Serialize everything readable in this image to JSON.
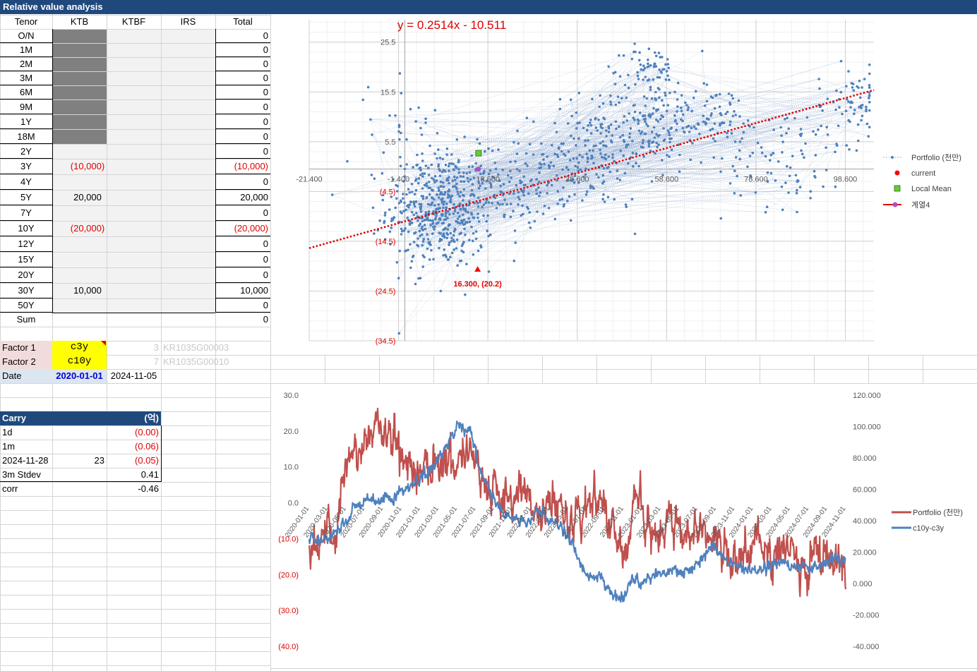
{
  "sheet_title": "Relative value analysis",
  "position_table": {
    "headers": [
      "Tenor",
      "KTB",
      "KTBF",
      "IRS",
      "Total"
    ],
    "rows": [
      {
        "tenor": "O/N",
        "ktb": "",
        "total": "0"
      },
      {
        "tenor": "1M",
        "ktb": "",
        "total": "0"
      },
      {
        "tenor": "2M",
        "ktb": "",
        "total": "0"
      },
      {
        "tenor": "3M",
        "ktb": "",
        "total": "0"
      },
      {
        "tenor": "6M",
        "ktb": "",
        "total": "0"
      },
      {
        "tenor": "9M",
        "ktb": "",
        "total": "0"
      },
      {
        "tenor": "1Y",
        "ktb": "",
        "total": "0"
      },
      {
        "tenor": "18M",
        "ktb": "",
        "total": "0"
      },
      {
        "tenor": "2Y",
        "ktb": "",
        "total": "0"
      },
      {
        "tenor": "3Y",
        "ktb": "(10,000)",
        "total": "(10,000)"
      },
      {
        "tenor": "4Y",
        "ktb": "",
        "total": "0"
      },
      {
        "tenor": "5Y",
        "ktb": "20,000",
        "total": "20,000"
      },
      {
        "tenor": "7Y",
        "ktb": "",
        "total": "0"
      },
      {
        "tenor": "10Y",
        "ktb": "(20,000)",
        "total": "(20,000)"
      },
      {
        "tenor": "12Y",
        "ktb": "",
        "total": "0"
      },
      {
        "tenor": "15Y",
        "ktb": "",
        "total": "0"
      },
      {
        "tenor": "20Y",
        "ktb": "",
        "total": "0"
      },
      {
        "tenor": "30Y",
        "ktb": "10,000",
        "total": "10,000"
      },
      {
        "tenor": "50Y",
        "ktb": "",
        "total": "0"
      }
    ],
    "sum_label": "Sum",
    "sum_value": "0"
  },
  "factors": {
    "factor1_label": "Factor 1",
    "factor1_value": "c3y",
    "factor1_index": "3",
    "factor1_code": "KR1035G00003",
    "factor2_label": "Factor 2",
    "factor2_value": "c10y",
    "factor2_index": "7",
    "factor2_code": "KR1035G00010",
    "date_label": "Date",
    "date_start": "2020-01-01",
    "date_end": "2024-11-05"
  },
  "carry": {
    "title": "Carry",
    "unit": "(억)",
    "rows": [
      {
        "label": "1d",
        "mid": "",
        "value": "(0.00)",
        "neg": true
      },
      {
        "label": "1m",
        "mid": "",
        "value": "(0.06)",
        "neg": true
      },
      {
        "label": "2024-11-28",
        "mid": "23",
        "value": "(0.05)",
        "neg": true
      },
      {
        "label": "3m Stdev",
        "mid": "",
        "value": "0.41",
        "neg": false
      },
      {
        "label": "corr",
        "mid": "",
        "value": "-0.46",
        "neg": false
      }
    ]
  },
  "colors": {
    "header_blue": "#1f497d",
    "scatter_blue": "#4f81bd",
    "trend_red": "#e00000",
    "series_red": "#c0504d",
    "series_blue": "#4f81bd",
    "factor_yellow": "#ffff00",
    "label_pink": "#f2dcdb",
    "date_blue_fill": "#dce6f1"
  },
  "chart_data": [
    {
      "type": "scatter",
      "annotations": {
        "equation": "y = 0.2514x - 10.511",
        "point_label": "16.300, (20.2)"
      },
      "x_ticks": [
        "-21.400",
        "-1.400",
        "18.600",
        "38.600",
        "58.600",
        "78.600",
        "98.600"
      ],
      "y_ticks": [
        "25.5",
        "15.5",
        "5.5",
        "(4.5)",
        "(14.5)",
        "(24.5)",
        "(34.5)"
      ],
      "xlim": [
        -21.4,
        105
      ],
      "ylim": [
        -34.5,
        30
      ],
      "trendline": {
        "slope": 0.2514,
        "intercept": -10.511
      },
      "series": [
        {
          "name": "Portfolio (천만)"
        },
        {
          "name": "current",
          "x": 16.3,
          "y": -20.2
        },
        {
          "name": "Local Mean",
          "x": 16.5,
          "y": 3.2
        },
        {
          "name": "계열4",
          "x": 16.5,
          "y": 0.0
        }
      ],
      "clusters": [
        {
          "cx": 8,
          "cy": -8,
          "sx": 6,
          "sy": 6,
          "n": 520
        },
        {
          "cx": 27,
          "cy": -3,
          "sx": 5,
          "sy": 4,
          "n": 120
        },
        {
          "cx": 42,
          "cy": 2,
          "sx": 7,
          "sy": 5,
          "n": 170
        },
        {
          "cx": 55,
          "cy": 10,
          "sx": 7,
          "sy": 4,
          "n": 160
        },
        {
          "cx": 55,
          "cy": 20,
          "sx": 3,
          "sy": 2.5,
          "n": 60
        },
        {
          "cx": 70,
          "cy": 11,
          "sx": 5,
          "sy": 3,
          "n": 60
        },
        {
          "cx": 85,
          "cy": 2,
          "sx": 7,
          "sy": 5,
          "n": 90
        },
        {
          "cx": 100,
          "cy": 13,
          "sx": 4,
          "sy": 4,
          "n": 70
        },
        {
          "cx": 0,
          "cy": 10,
          "sx": 4,
          "sy": 4,
          "n": 25
        }
      ]
    },
    {
      "type": "line",
      "x_ticks": [
        "2020-01-01",
        "2020-03-01",
        "2020-05-01",
        "2020-07-01",
        "2020-09-01",
        "2020-11-01",
        "2021-01-01",
        "2021-03-01",
        "2021-05-01",
        "2021-07-01",
        "2021-09-01",
        "2021-11-01",
        "2022-01-01",
        "2022-03-01",
        "2022-05-01",
        "2022-07-01",
        "2022-09-01",
        "2022-11-01",
        "2023-01-01",
        "2023-03-01",
        "2023-05-01",
        "2023-07-01",
        "2023-09-01",
        "2023-11-01",
        "2024-01-01",
        "2024-03-01",
        "2024-05-01",
        "2024-07-01",
        "2024-09-01",
        "2024-11-01"
      ],
      "y_left_ticks": [
        "30.0",
        "20.0",
        "10.0",
        "0.0",
        "(10.0)",
        "(20.0)",
        "(30.0)",
        "(40.0)"
      ],
      "y_right_ticks": [
        "120.000",
        "100.000",
        "80.000",
        "60.000",
        "40.000",
        "20.000",
        "0.000",
        "-20.000",
        "-40.000"
      ],
      "ylim_left": [
        -40,
        30
      ],
      "ylim_right": [
        -40,
        120
      ],
      "series": [
        {
          "name": "Portfolio (천만)",
          "axis": "left",
          "color": "#c0504d",
          "anchors": [
            [
              0,
              -12
            ],
            [
              0.05,
              -8
            ],
            [
              0.07,
              10
            ],
            [
              0.1,
              16
            ],
            [
              0.13,
              22
            ],
            [
              0.17,
              15
            ],
            [
              0.2,
              8
            ],
            [
              0.24,
              13
            ],
            [
              0.27,
              11
            ],
            [
              0.3,
              17
            ],
            [
              0.33,
              5
            ],
            [
              0.37,
              -2
            ],
            [
              0.4,
              5
            ],
            [
              0.43,
              -4
            ],
            [
              0.46,
              2
            ],
            [
              0.49,
              -6
            ],
            [
              0.53,
              1
            ],
            [
              0.56,
              -4
            ],
            [
              0.59,
              -14
            ],
            [
              0.61,
              4
            ],
            [
              0.64,
              -12
            ],
            [
              0.67,
              -4
            ],
            [
              0.7,
              -8
            ],
            [
              0.73,
              -6
            ],
            [
              0.76,
              -12
            ],
            [
              0.8,
              -18
            ],
            [
              0.83,
              -10
            ],
            [
              0.86,
              -16
            ],
            [
              0.89,
              -12
            ],
            [
              0.92,
              -18
            ],
            [
              0.95,
              -14
            ],
            [
              0.98,
              -16
            ],
            [
              1,
              -20
            ]
          ]
        },
        {
          "name": "c10y-c3y",
          "axis": "right",
          "color": "#4f81bd",
          "anchors": [
            [
              0,
              30
            ],
            [
              0.03,
              26
            ],
            [
              0.06,
              38
            ],
            [
              0.09,
              50
            ],
            [
              0.12,
              52
            ],
            [
              0.15,
              54
            ],
            [
              0.18,
              60
            ],
            [
              0.2,
              66
            ],
            [
              0.23,
              74
            ],
            [
              0.26,
              90
            ],
            [
              0.28,
              100
            ],
            [
              0.3,
              98
            ],
            [
              0.32,
              70
            ],
            [
              0.35,
              52
            ],
            [
              0.37,
              42
            ],
            [
              0.4,
              40
            ],
            [
              0.43,
              44
            ],
            [
              0.46,
              38
            ],
            [
              0.49,
              26
            ],
            [
              0.51,
              8
            ],
            [
              0.54,
              4
            ],
            [
              0.56,
              -2
            ],
            [
              0.58,
              -10
            ],
            [
              0.6,
              2
            ],
            [
              0.63,
              4
            ],
            [
              0.66,
              8
            ],
            [
              0.69,
              6
            ],
            [
              0.72,
              10
            ],
            [
              0.75,
              24
            ],
            [
              0.78,
              14
            ],
            [
              0.81,
              8
            ],
            [
              0.84,
              10
            ],
            [
              0.87,
              14
            ],
            [
              0.9,
              12
            ],
            [
              0.93,
              10
            ],
            [
              0.96,
              14
            ],
            [
              0.98,
              16
            ],
            [
              1,
              14
            ]
          ]
        }
      ]
    }
  ]
}
